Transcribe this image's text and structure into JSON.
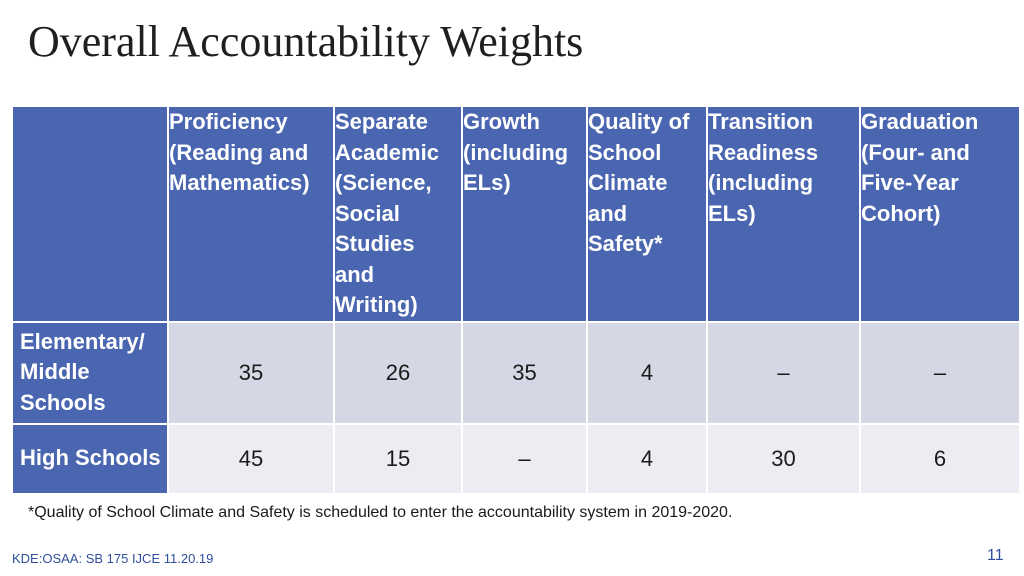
{
  "title": "Overall Accountability Weights",
  "table": {
    "columns": [
      "",
      "Proficiency\n(Reading and\nMathematics)",
      "Separate\nAcademic\n(Science,\nSocial\nStudies\nand\nWriting)",
      "Growth\n(including\nELs)",
      "Quality of\nSchool\nClimate\nand\nSafety*",
      "Transition\nReadiness\n(including\nELs)",
      "Graduation\n(Four- and\nFive-Year\nCohort)"
    ],
    "rows": [
      {
        "label": "Elementary/\nMiddle\nSchools",
        "values": [
          "35",
          "26",
          "35",
          "4",
          "–",
          "–"
        ]
      },
      {
        "label": "High Schools",
        "values": [
          "45",
          "15",
          "–",
          "4",
          "30",
          "6"
        ]
      }
    ]
  },
  "footnote": "*Quality of School Climate and Safety is scheduled to enter the accountability system in 2019-2020.",
  "source": "KDE:OSAA: SB 175 IJCE 11.20.19",
  "page_number": "11",
  "colors": {
    "header_blue": "#4a66b0",
    "row1_fill": "#d5d8e4",
    "row2_fill": "#ebedf2",
    "footer_blue": "#2f4f9e"
  }
}
